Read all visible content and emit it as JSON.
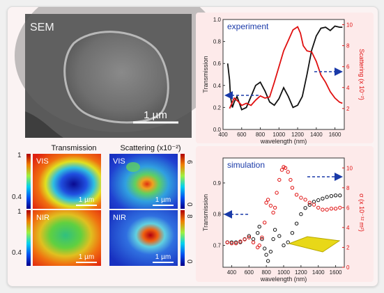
{
  "sem": {
    "label": "SEM",
    "scale_label": "1 µm"
  },
  "maps": {
    "col_titles": {
      "transmission": "Transmission",
      "scattering": "Scattering (x10⁻²)"
    },
    "colorbar_trans": {
      "top_vis": "1",
      "bottom_vis": "0.4",
      "top_nir": "1",
      "bottom_nir": "0.4"
    },
    "colorbar_scat": {
      "top_vis": "6",
      "bottom_vis": "0",
      "top_nir": "8",
      "bottom_nir": "0"
    },
    "row_labels": {
      "vis": "VIS",
      "nir": "NIR"
    },
    "scale_label": "1 µm"
  },
  "colors": {
    "experiment_title": "#1a3aa8",
    "scattering_red": "#e01010",
    "transmission_black": "#111111",
    "arrow_blue": "#1a3aa8"
  },
  "chart_data": [
    {
      "type": "line",
      "title": "experiment",
      "xlabel": "wavelength (nm)",
      "ylabel": "Transmission",
      "y2label": "Scattering (x 10⁻²)",
      "xlim": [
        400,
        1700
      ],
      "ylim": [
        0.0,
        1.0
      ],
      "y2lim": [
        0,
        10.5
      ],
      "xticks": [
        "400",
        "600",
        "800",
        "1000",
        "1200",
        "1400",
        "1600"
      ],
      "yticks": [
        "0.0",
        "0.2",
        "0.4",
        "0.6",
        "0.8",
        "1.0"
      ],
      "y2ticks": [
        "2",
        "4",
        "6",
        "8",
        "10"
      ],
      "series": [
        {
          "axis": "left",
          "x": [
            450,
            470,
            480,
            500,
            520,
            550,
            600,
            650,
            700,
            750,
            800,
            850,
            900,
            950,
            1000,
            1050,
            1100,
            1150,
            1200,
            1250,
            1300,
            1350,
            1400,
            1450,
            1500,
            1550,
            1600,
            1650,
            1680
          ],
          "y": [
            0.6,
            0.45,
            0.3,
            0.2,
            0.25,
            0.3,
            0.18,
            0.2,
            0.3,
            0.4,
            0.43,
            0.35,
            0.25,
            0.22,
            0.28,
            0.38,
            0.3,
            0.2,
            0.22,
            0.3,
            0.5,
            0.72,
            0.85,
            0.92,
            0.93,
            0.9,
            0.94,
            0.93,
            0.93
          ]
        },
        {
          "axis": "right",
          "x": [
            470,
            520,
            560,
            600,
            650,
            700,
            750,
            800,
            850,
            900,
            950,
            1000,
            1050,
            1100,
            1150,
            1200,
            1230,
            1260,
            1300,
            1350,
            1400,
            1450,
            1500,
            1550,
            1600,
            1650,
            1680
          ],
          "y": [
            2.0,
            3.0,
            2.7,
            2.3,
            2.5,
            2.3,
            2.8,
            3.2,
            3.0,
            3.1,
            4.5,
            6.0,
            7.5,
            8.5,
            9.5,
            9.8,
            9.2,
            8.0,
            7.5,
            7.4,
            6.5,
            5.2,
            4.5,
            3.6,
            3.0,
            2.6,
            2.5
          ]
        }
      ]
    },
    {
      "type": "scatter",
      "title": "simulation",
      "xlabel": "wavelength (nm)",
      "ylabel": "Transmission",
      "y2label": "σ (x 10⁻¹² m²)",
      "xlim": [
        300,
        1700
      ],
      "ylim": [
        0.63,
        0.98
      ],
      "y2lim": [
        0,
        11
      ],
      "xticks": [
        "400",
        "600",
        "800",
        "1000",
        "1200",
        "1400",
        "1600"
      ],
      "yticks": [
        "0.7",
        "0.8",
        "0.9"
      ],
      "y2ticks": [
        "0",
        "2",
        "4",
        "6",
        "8",
        "10"
      ],
      "series": [
        {
          "axis": "left",
          "x": [
            350,
            400,
            450,
            500,
            550,
            600,
            650,
            700,
            720,
            750,
            780,
            800,
            820,
            850,
            880,
            900,
            950,
            1000,
            1050,
            1100,
            1150,
            1200,
            1250,
            1300,
            1350,
            1400,
            1450,
            1500,
            1550,
            1600,
            1650
          ],
          "y": [
            0.71,
            0.71,
            0.71,
            0.71,
            0.72,
            0.73,
            0.72,
            0.74,
            0.76,
            0.72,
            0.69,
            0.67,
            0.65,
            0.68,
            0.72,
            0.75,
            0.73,
            0.7,
            0.71,
            0.74,
            0.77,
            0.8,
            0.82,
            0.83,
            0.84,
            0.845,
            0.85,
            0.855,
            0.858,
            0.86,
            0.86
          ]
        },
        {
          "axis": "right",
          "x": [
            350,
            400,
            450,
            500,
            550,
            600,
            650,
            700,
            720,
            750,
            780,
            800,
            820,
            850,
            880,
            900,
            920,
            950,
            980,
            1000,
            1020,
            1050,
            1080,
            1100,
            1150,
            1200,
            1250,
            1300,
            1350,
            1400,
            1450,
            1500,
            1550,
            1600,
            1650
          ],
          "y": [
            2.5,
            2.4,
            2.4,
            2.6,
            2.8,
            3.0,
            2.5,
            2.0,
            2.2,
            3.0,
            4.5,
            6.5,
            6.8,
            6.2,
            5.5,
            6.0,
            7.5,
            8.8,
            9.8,
            10.1,
            10.0,
            9.6,
            8.8,
            8.0,
            7.3,
            7.0,
            6.8,
            6.5,
            6.3,
            6.0,
            5.8,
            5.8,
            5.9,
            5.9,
            6.0
          ]
        }
      ]
    }
  ]
}
